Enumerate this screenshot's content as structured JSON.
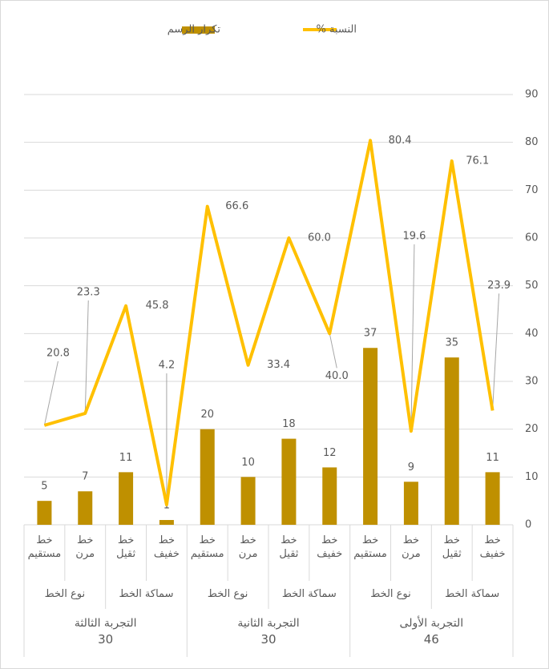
{
  "chart_data": {
    "type": "bar+line",
    "categories": [
      "خط مستقيم",
      "خط مرن",
      "خط ثقيل",
      "خط خفيف",
      "خط مستقيم",
      "خط مرن",
      "خط ثقيل",
      "خط خفيف",
      "خط مستقيم",
      "خط مرن",
      "خط ثقيل",
      "خط خفيف"
    ],
    "subgroups": [
      "نوع الخط",
      "سماكة الخط",
      "نوع الخط",
      "سماكة الخط",
      "نوع الخط",
      "سماكة الخط"
    ],
    "groups": [
      {
        "name": "التجربة الثالثة",
        "value": 30
      },
      {
        "name": "التجربة الثانية",
        "value": 30
      },
      {
        "name": "التجربة الأولى",
        "value": 46
      }
    ],
    "series": [
      {
        "name": "تكرار الرسم",
        "type": "bar",
        "color": "#bf9000",
        "values": [
          5,
          7,
          11,
          1,
          20,
          10,
          18,
          12,
          37,
          9,
          35,
          11
        ]
      },
      {
        "name": "النسبة %",
        "type": "line",
        "color": "#ffc000",
        "values": [
          20.8,
          23.3,
          45.8,
          4.2,
          66.6,
          33.4,
          60.0,
          40.0,
          80.4,
          19.6,
          76.1,
          23.9
        ],
        "value_labels": [
          "20.8",
          "23.3",
          "45.8",
          "4.2",
          "66.6",
          "33.4",
          "60.0",
          "40.0",
          "80.4",
          "19.6",
          "76.1",
          "23.9"
        ]
      }
    ],
    "ylim": [
      0,
      90
    ],
    "yticks": [
      0,
      10,
      20,
      30,
      40,
      50,
      60,
      70,
      80,
      90
    ],
    "grid": true,
    "legend": "top"
  }
}
